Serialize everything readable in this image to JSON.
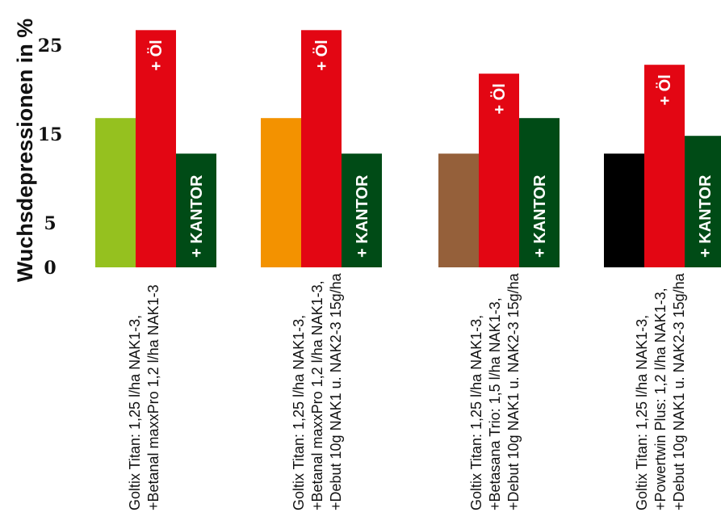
{
  "chart_data": {
    "type": "bar",
    "ylabel": "Wuchsdepressionen in %",
    "ylim": [
      0,
      28
    ],
    "yticks": [
      0,
      5,
      15,
      25
    ],
    "grid": false,
    "legend": "none",
    "groups": [
      {
        "category_lines": [
          "Goltix Titan: 1,25 l/ha NAK1-3,",
          "+Betanal maxxPro 1,2 l/ha NAK1-3"
        ],
        "bars": [
          {
            "value": 16.8,
            "color": "#95c11f",
            "label": ""
          },
          {
            "value": 26.7,
            "color": "#e30613",
            "label": "+ Öl"
          },
          {
            "value": 12.8,
            "color": "#004b16",
            "label": "+ KANTOR"
          }
        ]
      },
      {
        "category_lines": [
          "Goltix Titan: 1,25 l/ha NAK1-3,",
          "+Betanal maxxPro 1,2 l/ha NAK1-3,",
          "+Debut 10g NAK1 u. NAK2-3 15g/ha"
        ],
        "bars": [
          {
            "value": 16.8,
            "color": "#f39200",
            "label": ""
          },
          {
            "value": 26.7,
            "color": "#e30613",
            "label": "+ Öl"
          },
          {
            "value": 12.8,
            "color": "#004b16",
            "label": "+ KANTOR"
          }
        ]
      },
      {
        "category_lines": [
          "Goltix Titan: 1,25 l/ha NAK1-3,",
          "+Betasana Trio: 1,5 l/ha NAK1-3,",
          "+Debut 10g NAK1 u. NAK2-3 15g/ha"
        ],
        "bars": [
          {
            "value": 12.8,
            "color": "#95603a",
            "label": ""
          },
          {
            "value": 21.8,
            "color": "#e30613",
            "label": "+ Öl"
          },
          {
            "value": 16.8,
            "color": "#004b16",
            "label": "+ KANTOR"
          }
        ]
      },
      {
        "category_lines": [
          "Goltix Titan: 1,25 l/ha NAK1-3,",
          "+Powertwin Plus: 1,2 l/ha NAK1-3,",
          "+Debut 10g NAK1 u. NAK2-3 15g/ha"
        ],
        "bars": [
          {
            "value": 12.8,
            "color": "#000000",
            "label": ""
          },
          {
            "value": 22.8,
            "color": "#e30613",
            "label": "+ Öl"
          },
          {
            "value": 14.8,
            "color": "#004b16",
            "label": "+ KANTOR"
          }
        ]
      }
    ]
  }
}
